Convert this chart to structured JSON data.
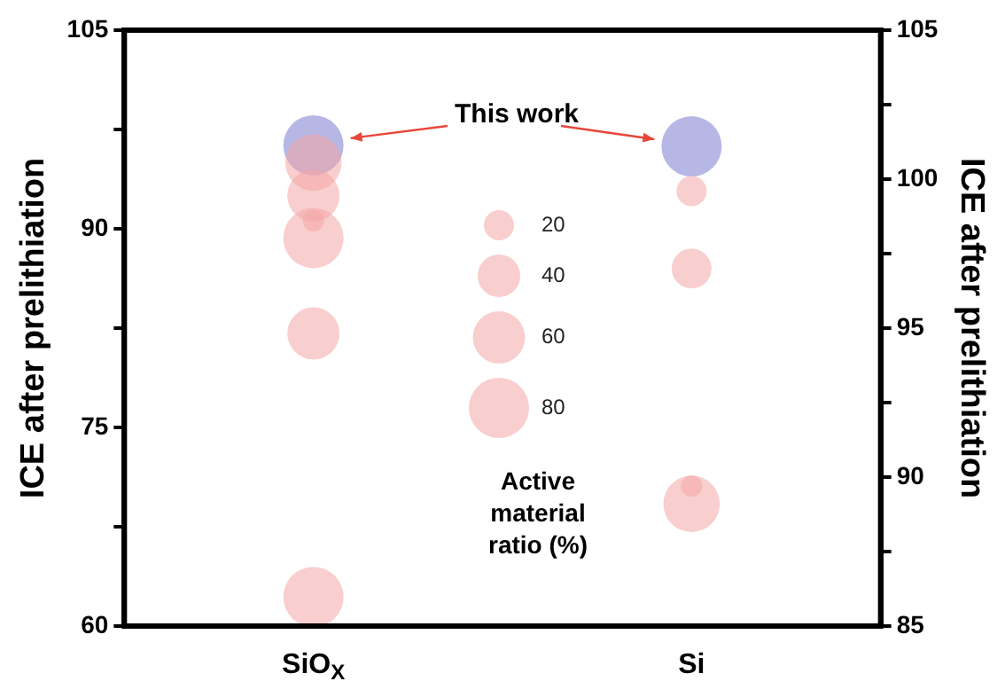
{
  "chart_data": {
    "type": "bubble",
    "categories": [
      "SiO$_{X}$",
      "Si"
    ],
    "ylabel": "ICE after prelithiation",
    "y2label": "ICE after prelithiation",
    "legend_title": "Active material ratio (%)",
    "size_legend": [
      20,
      40,
      60,
      80
    ],
    "annotations": [
      "This work"
    ],
    "ylim": [
      60,
      105
    ],
    "yticks": [
      60,
      {
        "value": 67.5,
        "label": null
      },
      75,
      {
        "value": 82.5,
        "label": null
      },
      90,
      {
        "value": 97.5,
        "label": null
      },
      105
    ],
    "y2lim": [
      85,
      105
    ],
    "y2ticks": [
      85,
      {
        "value": 87.5,
        "label": null
      },
      90,
      {
        "value": 92.5,
        "label": null
      },
      95,
      {
        "value": 97.5,
        "label": null
      },
      100,
      {
        "value": 102.5,
        "label": null
      },
      105
    ],
    "grid": false,
    "legend": false,
    "series": [
      {
        "color": "#f4a6a6",
        "x": [
          "SiO$_{X}$",
          "SiO$_{X}$",
          "SiO$_{X}$",
          "SiO$_{X}$",
          "SiO$_{X}$",
          "SiO$_{X}$"
        ],
        "values": [
          95.0,
          92.5,
          90.6,
          89.3,
          82.1,
          62.2
        ],
        "sizes": [
          70,
          60,
          10,
          80,
          60,
          80
        ]
      },
      {
        "color": "#7b7bd0",
        "x": [
          "SiO$_{X}$"
        ],
        "values": [
          96.3
        ],
        "sizes": [
          80
        ]
      },
      {
        "color": "#f4a6a6",
        "axis": "y2",
        "x": [
          "Si",
          "Si",
          "Si",
          "Si"
        ],
        "values": [
          99.6,
          97.0,
          89.1,
          89.7
        ],
        "sizes": [
          20,
          35,
          70,
          10
        ]
      },
      {
        "color": "#7b7bd0",
        "axis": "y2",
        "x": [
          "Si"
        ],
        "values": [
          101.1
        ],
        "sizes": [
          80
        ]
      }
    ]
  }
}
